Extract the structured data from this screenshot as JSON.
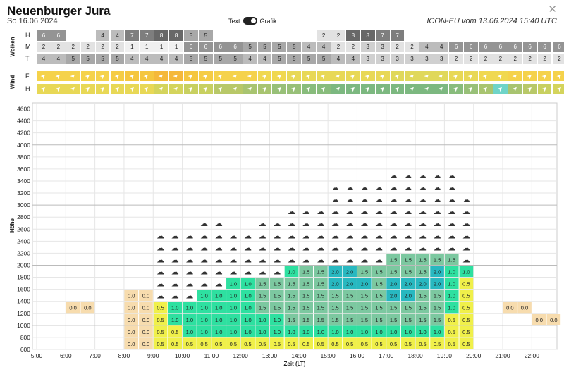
{
  "header": {
    "title": "Neuenburger Jura",
    "subtitle": "So 16.06.2024",
    "toggle_left": "Text",
    "toggle_right": "Grafik",
    "model": "ICON-EU vom 13.06.2024 15:40 UTC",
    "close_icon": "close-icon"
  },
  "clouds": {
    "label": "Wolken",
    "rows": [
      {
        "label": "H",
        "values": [
          "6",
          "6",
          "",
          "",
          "4",
          "4",
          "7",
          "7",
          "8",
          "8",
          "5",
          "5",
          "",
          "",
          "",
          "",
          "",
          "",
          "",
          "2",
          "2",
          "8",
          "8",
          "7",
          "7",
          "",
          "",
          "",
          "",
          "",
          "",
          "",
          "",
          "",
          "",
          ""
        ]
      },
      {
        "label": "M",
        "values": [
          "2",
          "2",
          "2",
          "2",
          "2",
          "2",
          "1",
          "1",
          "1",
          "1",
          "6",
          "6",
          "6",
          "6",
          "5",
          "5",
          "5",
          "5",
          "4",
          "4",
          "2",
          "2",
          "3",
          "3",
          "2",
          "2",
          "4",
          "4",
          "6",
          "6",
          "6",
          "6",
          "6",
          "6",
          "6",
          "6"
        ]
      },
      {
        "label": "T",
        "values": [
          "4",
          "4",
          "5",
          "5",
          "5",
          "5",
          "4",
          "4",
          "4",
          "4",
          "5",
          "5",
          "5",
          "5",
          "4",
          "4",
          "5",
          "5",
          "5",
          "5",
          "4",
          "4",
          "3",
          "3",
          "3",
          "3",
          "3",
          "3",
          "2",
          "2",
          "2",
          "2",
          "2",
          "2",
          "2",
          "2"
        ]
      }
    ]
  },
  "wind": {
    "label": "Wind",
    "rows": [
      {
        "label": "F",
        "colors": [
          "#f5d24b",
          "#f5d24b",
          "#f5d24b",
          "#f5d24b",
          "#f5d24b",
          "#f5cc45",
          "#f5c63f",
          "#f5c63f",
          "#f5b83a",
          "#f5b83a",
          "#f5c63f",
          "#f5cc45",
          "#f5d24b",
          "#f5d24b",
          "#f5d24b",
          "#f0d850",
          "#f0d850",
          "#e8d856",
          "#e8d856",
          "#e8d856",
          "#e8d856",
          "#e8d856",
          "#e8d856",
          "#e8d856",
          "#e0d85a",
          "#e0d85a",
          "#e0d85a",
          "#e0d85a",
          "#e8d856",
          "#e8d856",
          "#f0d850",
          "#f0d850",
          "#f5d24b",
          "#f5d24b",
          "#f5d24b",
          "#f5d24b"
        ]
      },
      {
        "label": "H",
        "colors": [
          "#e8d856",
          "#e8d856",
          "#e8d856",
          "#e8d856",
          "#e8d856",
          "#e8d856",
          "#e8d856",
          "#e8d856",
          "#d4d45c",
          "#d4d45c",
          "#c8d060",
          "#c8d060",
          "#b8c868",
          "#b8c868",
          "#a8c470",
          "#a8c470",
          "#98c078",
          "#98c078",
          "#88bc7c",
          "#88bc7c",
          "#7cb880",
          "#7cb880",
          "#7cb880",
          "#7cb880",
          "#7cb880",
          "#7cb880",
          "#7cb880",
          "#7cb880",
          "#88bc7c",
          "#98c078",
          "#a8c470",
          "#6fd4c8",
          "#a8c470",
          "#b8c868",
          "#c8d060",
          "#d4d45c"
        ]
      }
    ]
  },
  "chart_data": {
    "type": "heatmap",
    "title": "",
    "xlabel": "Zeit (LT)",
    "ylabel": "Höhe",
    "x_ticks": [
      "5:00",
      "6:00",
      "7:00",
      "8:00",
      "9:00",
      "10:00",
      "11:00",
      "12:00",
      "13:00",
      "14:00",
      "15:00",
      "16:00",
      "17:00",
      "18:00",
      "19:00",
      "20:00",
      "21:00",
      "22:00"
    ],
    "y_ticks": [
      "600",
      "800",
      "1000",
      "1200",
      "1400",
      "1600",
      "1800",
      "2000",
      "2200",
      "2400",
      "2600",
      "2800",
      "3000",
      "3200",
      "3400",
      "3600",
      "3800",
      "4000",
      "4200",
      "4400",
      "4600"
    ],
    "ylim": [
      600,
      4700
    ],
    "columns": [
      {
        "time": "6:00",
        "values": [
          null,
          null,
          null,
          "0.0"
        ],
        "clouds": 0
      },
      {
        "time": "6:30",
        "values": [
          null,
          null,
          null,
          "0.0"
        ],
        "clouds": 0
      },
      {
        "time": "8:00",
        "values": [
          "0.0",
          "0.0",
          "0.0",
          "0.0",
          "0.0"
        ],
        "clouds": 0
      },
      {
        "time": "8:30",
        "values": [
          "0.0",
          "0.0",
          "0.0",
          "0.0",
          "0.0"
        ],
        "clouds": 0
      },
      {
        "time": "9:00",
        "values": [
          "0.5",
          "0.5",
          "0.5",
          "0.5"
        ],
        "clouds": 6
      },
      {
        "time": "9:30",
        "values": [
          "0.5",
          "0.5",
          "1.0",
          "1.0"
        ],
        "clouds": 6
      },
      {
        "time": "10:00",
        "values": [
          "0.5",
          "1.0",
          "1.0",
          "1.0"
        ],
        "clouds": 6
      },
      {
        "time": "10:30",
        "values": [
          "0.5",
          "1.0",
          "1.0",
          "1.0",
          "1.0"
        ],
        "clouds": 6
      },
      {
        "time": "11:00",
        "values": [
          "0.5",
          "1.0",
          "1.0",
          "1.0",
          "1.0"
        ],
        "clouds": 6
      },
      {
        "time": "11:30",
        "values": [
          "0.5",
          "1.0",
          "1.0",
          "1.0",
          "1.0",
          "1.0"
        ],
        "clouds": 4
      },
      {
        "time": "12:00",
        "values": [
          "0.5",
          "1.0",
          "1.0",
          "1.0",
          "1.0",
          "1.0"
        ],
        "clouds": 4
      },
      {
        "time": "12:30",
        "values": [
          "0.5",
          "1.0",
          "1.0",
          "1.5",
          "1.5",
          "1.5"
        ],
        "clouds": 5
      },
      {
        "time": "13:00",
        "values": [
          "0.5",
          "1.0",
          "1.0",
          "1.5",
          "1.5",
          "1.5"
        ],
        "clouds": 5
      },
      {
        "time": "13:30",
        "values": [
          "0.5",
          "1.0",
          "1.5",
          "1.5",
          "1.5",
          "1.5",
          "1.0"
        ],
        "clouds": 5
      },
      {
        "time": "14:00",
        "values": [
          "0.5",
          "1.0",
          "1.5",
          "1.5",
          "1.5",
          "1.5",
          "1.5"
        ],
        "clouds": 5
      },
      {
        "time": "14:30",
        "values": [
          "0.5",
          "1.0",
          "1.5",
          "1.5",
          "1.5",
          "1.5",
          "1.5"
        ],
        "clouds": 5
      },
      {
        "time": "15:00",
        "values": [
          "0.5",
          "1.0",
          "1.5",
          "1.5",
          "1.5",
          "2.0",
          "2.0"
        ],
        "clouds": 7
      },
      {
        "time": "15:30",
        "values": [
          "0.5",
          "1.0",
          "1.5",
          "1.5",
          "1.5",
          "2.0",
          "2.0"
        ],
        "clouds": 7
      },
      {
        "time": "16:00",
        "values": [
          "0.5",
          "1.0",
          "1.5",
          "1.5",
          "1.5",
          "2.0",
          "1.5"
        ],
        "clouds": 7
      },
      {
        "time": "16:30",
        "values": [
          "0.5",
          "1.0",
          "1.5",
          "1.5",
          "1.5",
          "1.5",
          "1.5"
        ],
        "clouds": 7
      },
      {
        "time": "17:00",
        "values": [
          "0.5",
          "1.0",
          "1.5",
          "1.5",
          "2.0",
          "2.0",
          "1.5",
          "1.5"
        ],
        "clouds": 7
      },
      {
        "time": "17:30",
        "values": [
          "0.5",
          "1.0",
          "1.5",
          "1.5",
          "2.0",
          "2.0",
          "1.5",
          "1.5"
        ],
        "clouds": 7
      },
      {
        "time": "18:00",
        "values": [
          "0.5",
          "1.0",
          "1.5",
          "1.5",
          "1.5",
          "2.0",
          "1.5",
          "1.5"
        ],
        "clouds": 7
      },
      {
        "time": "18:30",
        "values": [
          "0.5",
          "1.0",
          "1.5",
          "1.5",
          "1.5",
          "2.0",
          "2.0",
          "1.5"
        ],
        "clouds": 7
      },
      {
        "time": "19:00",
        "values": [
          "0.5",
          "0.5",
          "0.5",
          "1.0",
          "1.0",
          "1.0",
          "1.0",
          "1.5"
        ],
        "clouds": 7
      },
      {
        "time": "19:30",
        "values": [
          "0.5",
          "0.5",
          "0.5",
          "0.5",
          "0.5",
          "0.5",
          "1.0"
        ],
        "clouds": 6
      },
      {
        "time": "21:00",
        "values": [
          null,
          null,
          null,
          "0.0"
        ],
        "clouds": 0
      },
      {
        "time": "21:30",
        "values": [
          null,
          null,
          null,
          "0.0"
        ],
        "clouds": 0
      },
      {
        "time": "22:00",
        "values": [
          null,
          null,
          "0.0"
        ],
        "clouds": 0
      },
      {
        "time": "22:30",
        "values": [
          null,
          null,
          "0.0"
        ],
        "clouds": 0
      }
    ],
    "colors": {
      "0.0": "#f7dcae",
      "0.5": "#f0f04a",
      "1.0": "#2ee0a0",
      "1.5": "#7cc8a0",
      "2.0": "#28b8c0"
    },
    "grid": true
  }
}
